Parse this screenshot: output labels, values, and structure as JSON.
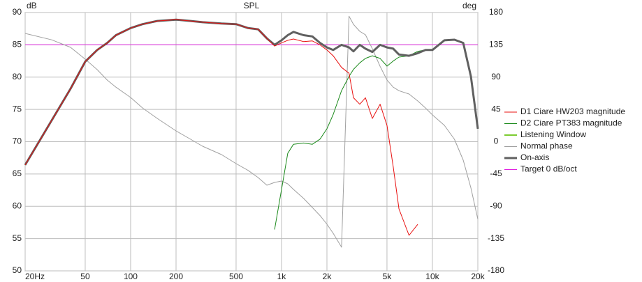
{
  "chart_data": {
    "type": "line",
    "title": "SPL",
    "y_label": "dB",
    "y2_label": "deg",
    "log_x": true,
    "grid": true,
    "legend": "right",
    "xlim": [
      20,
      20000
    ],
    "xticks": [
      {
        "value": 20,
        "label": "20Hz"
      },
      50,
      100,
      200,
      500,
      {
        "value": 1000,
        "label": "1k"
      },
      {
        "value": 2000,
        "label": "2k"
      },
      {
        "value": 5000,
        "label": "5k"
      },
      {
        "value": 10000,
        "label": "10k"
      },
      {
        "value": 20000,
        "label": "20k"
      }
    ],
    "ylim": [
      50,
      90
    ],
    "yticks": [
      50,
      55,
      60,
      65,
      70,
      75,
      80,
      85,
      90
    ],
    "y2lim": [
      -180,
      180
    ],
    "y2ticks": [
      -180,
      -135,
      -90,
      -45,
      0,
      45,
      90,
      135,
      180
    ],
    "x": [
      20,
      30,
      40,
      50,
      60,
      70,
      80,
      100,
      120,
      150,
      200,
      250,
      300,
      400,
      500,
      600,
      700,
      800,
      900,
      1000,
      1100,
      1200,
      1400,
      1600,
      1800,
      2000,
      2200,
      2500,
      2800,
      3000,
      3300,
      3600,
      4000,
      4500,
      5000,
      5500,
      6000,
      7000,
      8000,
      9000,
      10000,
      12000,
      14000,
      16000,
      18000,
      20000
    ],
    "series": [
      {
        "name": "Target 0 dB/oct",
        "color": "#e020e0",
        "width": 1,
        "values": [
          85,
          85,
          85,
          85,
          85,
          85,
          85,
          85,
          85,
          85,
          85,
          85,
          85,
          85,
          85,
          85,
          85,
          85,
          85,
          85,
          85,
          85,
          85,
          85,
          85,
          85,
          85,
          85,
          85,
          85,
          85,
          85,
          85,
          85,
          85,
          85,
          85,
          85,
          85,
          85,
          85,
          85,
          85,
          85,
          85,
          85
        ]
      },
      {
        "name": "Normal phase",
        "color": "#a0a0a0",
        "width": 1,
        "axis": "y2",
        "values": [
          150.9,
          142,
          131.5,
          115,
          100.4,
          85.9,
          76,
          61.6,
          47,
          32.5,
          15,
          3.4,
          -6.3,
          -18,
          -30.6,
          -40,
          -50,
          -60.6,
          -56.8,
          -54.8,
          -58.7,
          -66.5,
          -79,
          -91.7,
          -103,
          -115,
          -127.6,
          -147,
          175,
          163.5,
          153.8,
          149,
          129.5,
          105,
          86,
          76,
          71,
          66.5,
          56.8,
          47,
          37.4,
          22.8,
          3.4,
          -25.7,
          -64.5,
          -108
        ]
      },
      {
        "name": "D2 Ciare PT383 magnitude",
        "color": "#1b8a1b",
        "width": 1,
        "values": [
          null,
          null,
          null,
          null,
          null,
          null,
          null,
          null,
          null,
          null,
          null,
          null,
          null,
          null,
          null,
          null,
          null,
          null,
          56.4,
          62.6,
          68.2,
          69.6,
          69.8,
          69.6,
          70.4,
          72,
          74.2,
          77.9,
          80.1,
          81.2,
          82.2,
          82.9,
          83.3,
          82.9,
          81.7,
          82.5,
          83.1,
          83.3,
          84,
          84.2,
          84.2,
          85.7,
          85.8,
          85.3,
          80.1,
          72
        ]
      },
      {
        "name": "Listening Window",
        "color": "#7ccc30",
        "width": 2,
        "values": [
          66.4,
          73.3,
          78.2,
          82.4,
          84.2,
          85.3,
          86.5,
          87.6,
          88.2,
          88.7,
          88.9,
          88.7,
          88.5,
          88.3,
          88.2,
          87.6,
          87.4,
          86,
          85,
          85.7,
          86.5,
          87,
          86.5,
          86.3,
          85.3,
          84.6,
          84.2,
          85,
          84.6,
          84,
          85,
          84.4,
          83.9,
          85,
          84.6,
          84.4,
          83.5,
          83.3,
          83.7,
          84.2,
          84.2,
          85.7,
          85.8,
          85.3,
          80.1,
          72
        ]
      },
      {
        "name": "On-axis",
        "color": "#606060",
        "width": 3,
        "values": [
          66.4,
          73.3,
          78.2,
          82.4,
          84.2,
          85.3,
          86.5,
          87.6,
          88.2,
          88.7,
          88.9,
          88.7,
          88.5,
          88.3,
          88.2,
          87.6,
          87.4,
          86,
          85,
          85.7,
          86.5,
          87,
          86.5,
          86.3,
          85.3,
          84.6,
          84.2,
          85,
          84.6,
          84,
          85,
          84.4,
          83.9,
          85,
          84.6,
          84.4,
          83.5,
          83.3,
          83.7,
          84.2,
          84.2,
          85.7,
          85.8,
          85.3,
          80.1,
          72
        ]
      },
      {
        "name": "D1 Ciare HW203 magnitude",
        "color": "#e8100f",
        "width": 1,
        "values": [
          66.4,
          73.3,
          78.2,
          82.4,
          84.2,
          85.3,
          86.5,
          87.6,
          88.2,
          88.7,
          88.9,
          88.7,
          88.5,
          88.3,
          88.2,
          87.6,
          87.4,
          86,
          84.8,
          85.3,
          85.7,
          85.9,
          85.5,
          85.6,
          85,
          84.2,
          83.3,
          81.5,
          80.6,
          76.8,
          75.8,
          76.8,
          73.6,
          75.8,
          72.5,
          66.1,
          59.6,
          55.5,
          57.2,
          null,
          null,
          null,
          null,
          null,
          null,
          null
        ]
      }
    ],
    "legend_order": [
      5,
      2,
      3,
      1,
      4,
      0
    ]
  }
}
